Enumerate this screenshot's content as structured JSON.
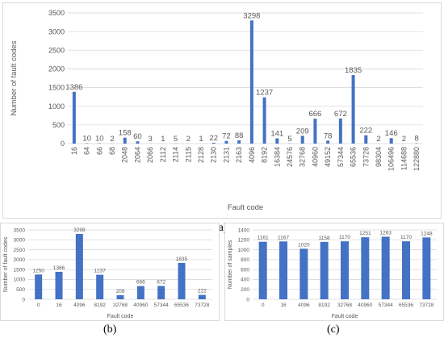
{
  "colors": {
    "bar": "#4472c4",
    "grid": "#d9d9d9",
    "text": "#595959"
  },
  "captions": {
    "a": "(a)",
    "b": "(b)",
    "c": "(c)"
  },
  "chart_data": [
    {
      "id": "a",
      "type": "bar",
      "xlabel": "Fault code",
      "ylabel": "Number of fault codes",
      "ylim": [
        0,
        3500
      ],
      "yticks": [
        0,
        500,
        1000,
        1500,
        2000,
        2500,
        3000,
        3500
      ],
      "grid": true,
      "categories": [
        "16",
        "64",
        "66",
        "68",
        "2048",
        "2064",
        "2066",
        "2112",
        "2114",
        "2115",
        "2128",
        "2130",
        "2131",
        "2163",
        "4096",
        "8192",
        "16384",
        "24576",
        "32768",
        "40960",
        "49152",
        "57344",
        "65536",
        "73728",
        "98304",
        "106496",
        "114688",
        "122880"
      ],
      "values": [
        1386,
        10,
        10,
        2,
        158,
        60,
        3,
        1,
        5,
        2,
        1,
        22,
        72,
        88,
        3298,
        1237,
        141,
        5,
        209,
        666,
        78,
        672,
        1835,
        222,
        2,
        146,
        2,
        8
      ]
    },
    {
      "id": "b",
      "type": "bar",
      "xlabel": "Fault code",
      "ylabel": "Number of fault codes",
      "ylim": [
        0,
        3500
      ],
      "yticks": [
        0,
        500,
        1000,
        1500,
        2000,
        2500,
        3000,
        3500
      ],
      "grid": true,
      "categories": [
        "0",
        "16",
        "4096",
        "8192",
        "32768",
        "40960",
        "57344",
        "65536",
        "73728"
      ],
      "values": [
        1250,
        1386,
        3298,
        1237,
        209,
        666,
        672,
        1835,
        222
      ]
    },
    {
      "id": "c",
      "type": "bar",
      "xlabel": "Fault code",
      "ylabel": "Number of samples",
      "ylim": [
        0,
        1400
      ],
      "yticks": [
        0,
        200,
        400,
        600,
        800,
        1000,
        1200,
        1400
      ],
      "grid": true,
      "categories": [
        "0",
        "16",
        "4096",
        "8192",
        "32768",
        "40960",
        "57344",
        "65536",
        "73728"
      ],
      "values": [
        1161,
        1167,
        1020,
        1158,
        1170,
        1251,
        1263,
        1170,
        1248
      ]
    }
  ]
}
